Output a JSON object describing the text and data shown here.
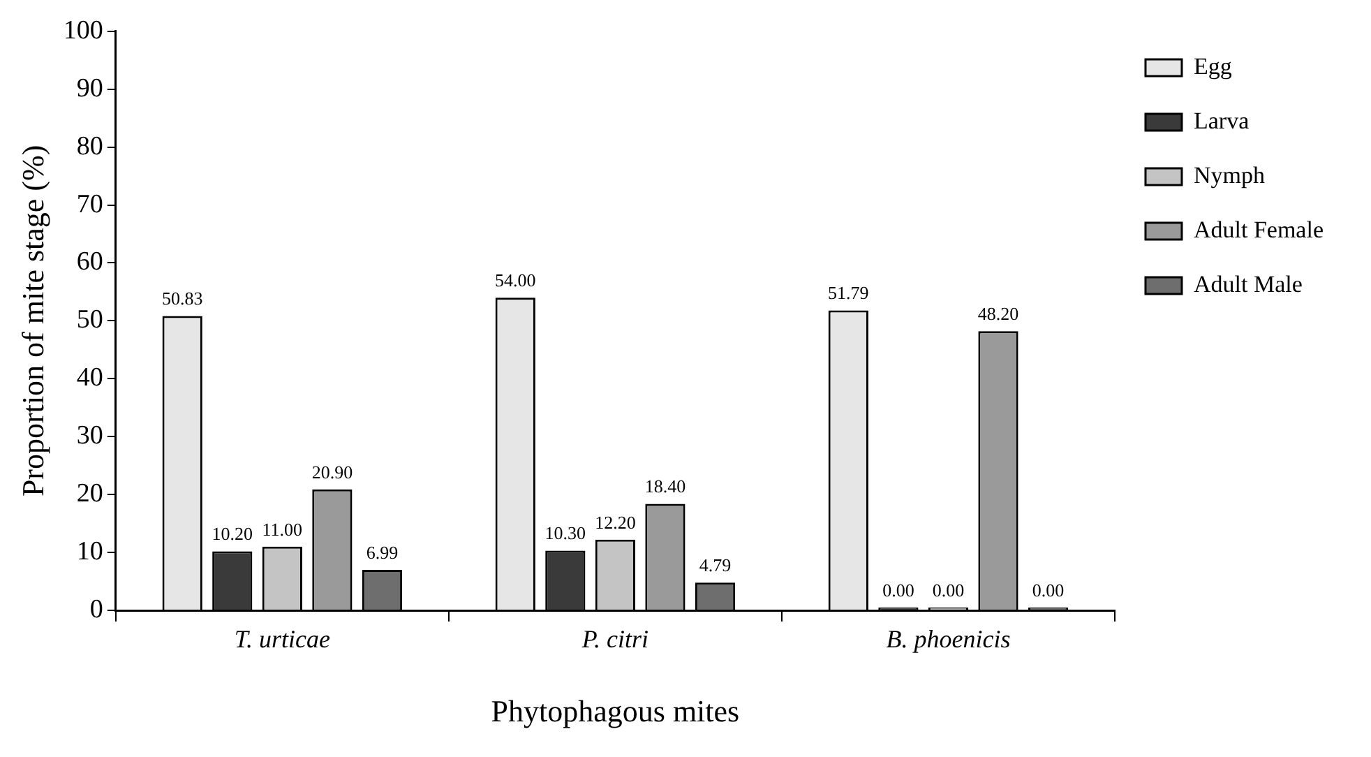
{
  "chart_data": {
    "type": "bar",
    "xlabel": "Phytophagous mites",
    "ylabel": "Proportion of mite stage (%)",
    "categories": [
      "T. urticae",
      "P. citri",
      "B. phoenicis"
    ],
    "series": [
      {
        "name": "Egg",
        "color": "#e6e6e6",
        "values": [
          50.83,
          54.0,
          51.79
        ],
        "value_labels": [
          "50.83",
          "54.00",
          "51.79"
        ]
      },
      {
        "name": "Larva",
        "color": "#3a3a3a",
        "values": [
          10.2,
          10.3,
          0
        ],
        "value_labels": [
          "10.20",
          "10.30",
          "0.00"
        ]
      },
      {
        "name": "Nymph",
        "color": "#c4c4c4",
        "values": [
          11.0,
          12.2,
          0
        ],
        "value_labels": [
          "11.00",
          "12.20",
          "0.00"
        ]
      },
      {
        "name": "Adult Female",
        "color": "#9a9a9a",
        "values": [
          20.9,
          18.4,
          48.2
        ],
        "value_labels": [
          "20.90",
          "18.40",
          "48.20"
        ]
      },
      {
        "name": "Adult Male",
        "color": "#6e6e6e",
        "values": [
          6.99,
          4.79,
          0
        ],
        "value_labels": [
          "6.99",
          "4.79",
          "0.00"
        ]
      }
    ],
    "ylim": [
      0,
      100
    ],
    "yticks": [
      0,
      10,
      20,
      30,
      40,
      50,
      60,
      70,
      80,
      90,
      100
    ],
    "grid": false,
    "legend": "right"
  }
}
